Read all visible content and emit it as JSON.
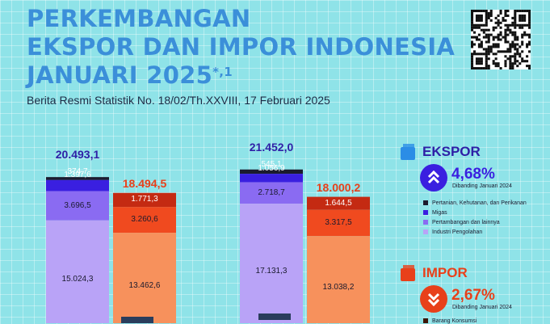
{
  "header": {
    "title_line1": "PERKEMBANGAN",
    "title_line2": "EKSPOR DAN IMPOR INDONESIA",
    "title_line3": "JANUARI 2025",
    "title_mark": "*,1",
    "subtitle": "Berita Resmi Statistik No. 18/02/Th.XXVIII, 17 Februari 2025"
  },
  "ekspor_panel": {
    "heading": "EKSPOR",
    "change": "4,68%",
    "note": "Dibanding Januari 2024",
    "legend": [
      "Pertanian, Kehutanan, dan Perikanan",
      "Migas",
      "Pertambangan dan lainnya",
      "Industri Pengolahan"
    ]
  },
  "impor_panel": {
    "heading": "IMPOR",
    "change": "2,67%",
    "note": "Dibanding Januari 2024",
    "legend": [
      "Barang Konsumsi"
    ]
  },
  "colors": {
    "title": "#3b8fd9",
    "export_total": "#2f1fa6",
    "import_total": "#e8401a",
    "export_segments": [
      "#1b1b2e",
      "#3a1fe0",
      "#8a6bf2",
      "#b9a3f7"
    ],
    "import_segments": [
      "#3d1507",
      "#c42a12",
      "#f04a1f",
      "#f7915c"
    ]
  },
  "chart_data": {
    "type": "bar",
    "stacked": true,
    "groups": [
      {
        "export": {
          "total": 20493.1,
          "total_label": "20.493,1",
          "values": [
            374.7,
            1397.6,
            3696.5,
            15024.3
          ],
          "labels": [
            "374,7",
            "1.397,6",
            "3.696,5",
            "15.024,3"
          ]
        },
        "import": {
          "total": 18494.5,
          "total_label": "18.494,5",
          "values": [
            1771.3,
            3260.6,
            13462.6
          ],
          "labels": [
            "1.771,3",
            "3.260,6",
            "13.462,6"
          ]
        }
      },
      {
        "export": {
          "total": 21452.0,
          "total_label": "21.452,0",
          "values": [
            545.1,
            1056.9,
            2718.7,
            17131.3
          ],
          "labels": [
            "545,1",
            "1.056,9",
            "2.718,7",
            "17.131,3"
          ]
        },
        "import": {
          "total": 18000.2,
          "total_label": "18.000,2",
          "values": [
            1644.5,
            3317.5,
            13038.2
          ],
          "labels": [
            "1.644,5",
            "3.317,5",
            "13.038,2"
          ]
        }
      }
    ]
  }
}
